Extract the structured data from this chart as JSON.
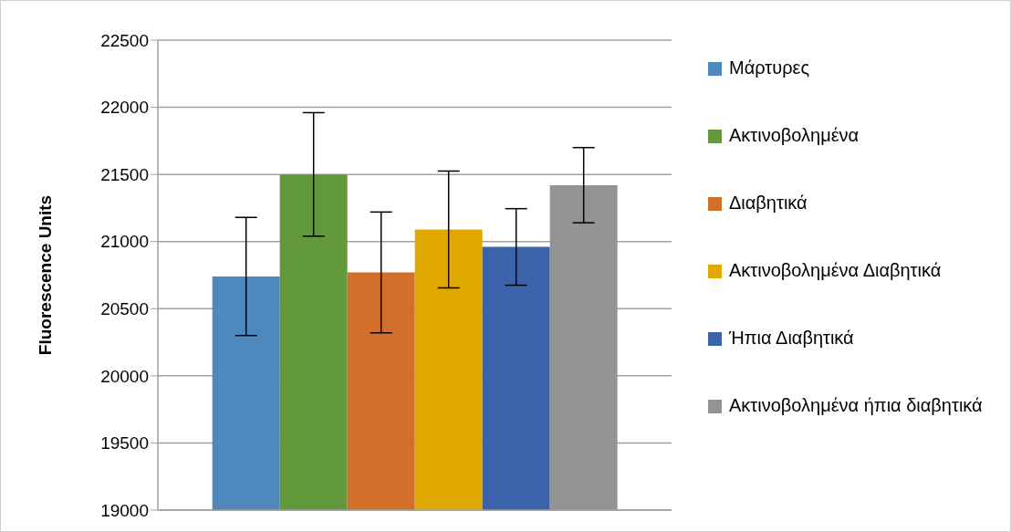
{
  "chart_data": {
    "type": "bar",
    "ylabel": "Fluorescence Units",
    "categories": [
      null
    ],
    "series": [
      {
        "name": "Μάρτυρες",
        "color": "#4f88bd",
        "values": [
          20740
        ],
        "errors": [
          440
        ]
      },
      {
        "name": "Ακτινοβολημένα",
        "color": "#62993d",
        "values": [
          21500
        ],
        "errors": [
          460
        ]
      },
      {
        "name": "Διαβητικά",
        "color": "#d46e2b",
        "values": [
          20770
        ],
        "errors": [
          450
        ]
      },
      {
        "name": "Ακτινοβολημένα Διαβητικά",
        "color": "#e0a900",
        "values": [
          21090
        ],
        "errors": [
          435
        ]
      },
      {
        "name": "Ήπια Διαβητικά",
        "color": "#3b63ab",
        "values": [
          20960
        ],
        "errors": [
          285
        ]
      },
      {
        "name": "Ακτινοβολημένα ήπια διαβητικά",
        "color": "#939393",
        "values": [
          21420
        ],
        "errors": [
          280
        ]
      }
    ],
    "ylim": [
      19000,
      22500
    ],
    "yticks": [
      19000,
      19500,
      20000,
      20500,
      21000,
      21500,
      22000,
      22500
    ],
    "grid": "y",
    "legend": "right"
  }
}
